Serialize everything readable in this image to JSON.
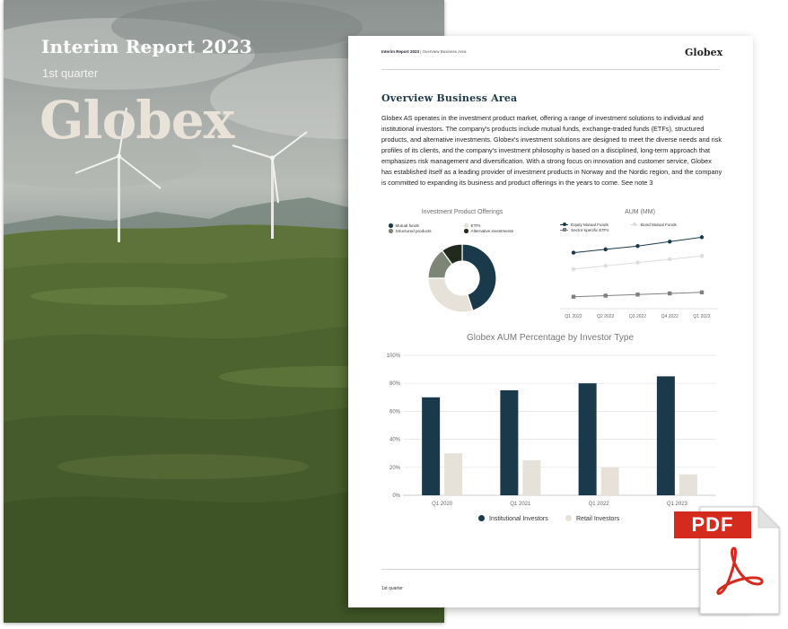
{
  "cover": {
    "title": "Interim Report 2023",
    "subtitle": "1st quarter",
    "logo": "Globex"
  },
  "page": {
    "header_left_bold": "Interim Report 2023",
    "header_left_rest": " | Overview Business Area",
    "header_logo": "Globex",
    "heading": "Overview Business Area",
    "body": "Globex AS operates in the investment product market, offering a range of investment solutions to individual and institutional investors. The company's products include mutual funds, exchange-traded funds (ETFs), structured products, and alternative investments. Globex's investment solutions are designed to meet the diverse needs and risk profiles of its clients, and the company's investment philosophy is based on a disciplined, long-term approach that emphasizes risk management and diversification. With a strong focus on innovation and customer service, Globex has established itself as a leading provider of investment products in Norway and the Nordic region, and the company is committed to expanding its business and product offerings in the years to come. See note 3",
    "footer": "1st quarter"
  },
  "pdf_icon": {
    "label": "PDF",
    "color": "#d52b1e"
  },
  "chart_data": [
    {
      "type": "pie",
      "title": "Investment Product Offerings",
      "categories": [
        "Mutual funds",
        "ETFs",
        "Structured products",
        "Alternative investments"
      ],
      "values": [
        45,
        30,
        15,
        10
      ],
      "colors": [
        "#1a3a4c",
        "#e6e1d9",
        "#7d8577",
        "#222a1e"
      ],
      "donut": true
    },
    {
      "type": "line",
      "title": "AUM (MM)",
      "x": [
        "Q1 2022",
        "Q2 2022",
        "Q3 2022",
        "Q4 2022",
        "Q1 2023"
      ],
      "series": [
        {
          "name": "Equity Mutual Funds",
          "values": [
            80,
            83,
            86,
            90,
            94
          ],
          "color": "#1a3a4c",
          "marker": "circle"
        },
        {
          "name": "Bond Mutual Funds",
          "values": [
            65,
            68,
            71,
            74,
            77
          ],
          "color": "#dcdcdc",
          "marker": "circle"
        },
        {
          "name": "Sector-specific ETFs",
          "values": [
            40,
            41,
            42,
            43,
            44
          ],
          "color": "#808080",
          "marker": "square"
        }
      ],
      "ylim": [
        30,
        100
      ],
      "grid": false
    },
    {
      "type": "bar",
      "title": "Globex AUM Percentage by Investor Type",
      "categories": [
        "Q1 2020",
        "Q1 2021",
        "Q1 2022",
        "Q1 2023"
      ],
      "series": [
        {
          "name": "Institutional Investors",
          "values": [
            70,
            75,
            80,
            85
          ],
          "color": "#1a3a4c"
        },
        {
          "name": "Retail Investors",
          "values": [
            30,
            25,
            20,
            15
          ],
          "color": "#e6e1d9"
        }
      ],
      "yticks": [
        "0%",
        "20%",
        "40%",
        "60%",
        "80%",
        "100%"
      ],
      "ylim": [
        0,
        100
      ],
      "grid": true,
      "legend": "bottom"
    }
  ]
}
